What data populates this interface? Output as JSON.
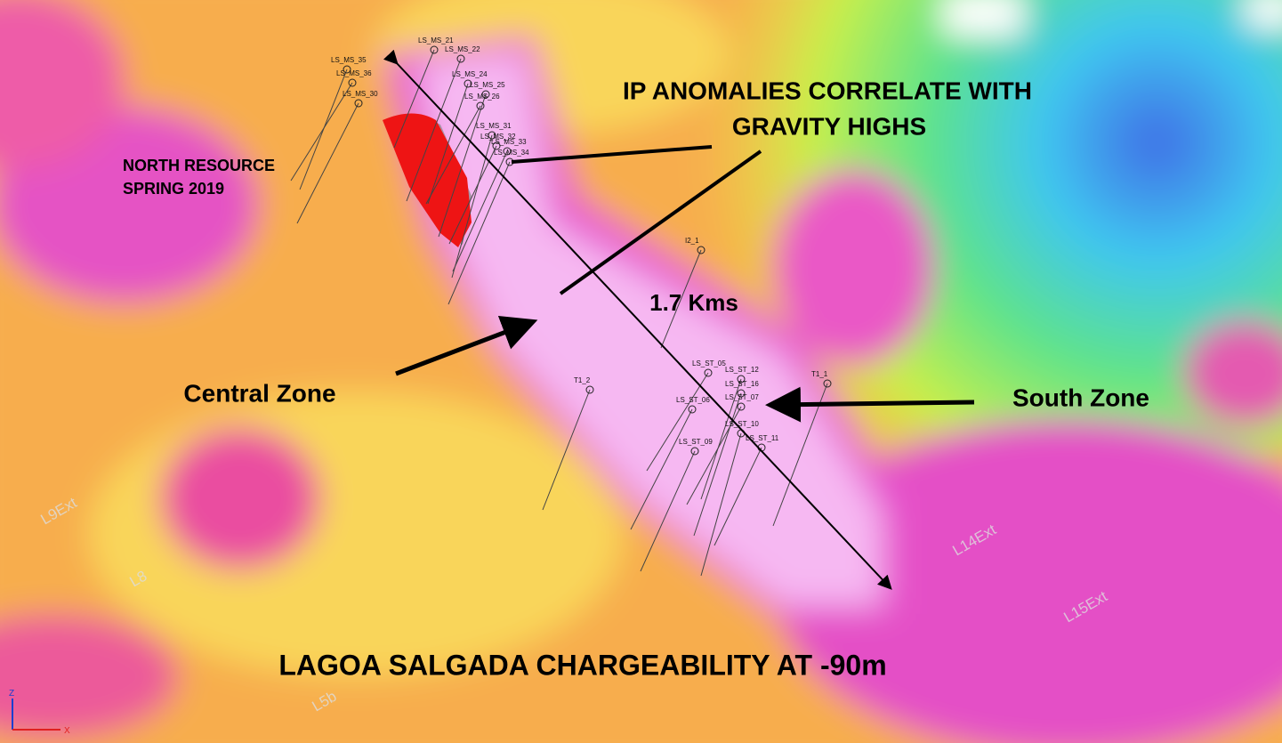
{
  "title": "LAGOA SALGADA CHARGEABILITY AT -90m",
  "annotations": {
    "ip_line_1": "IP ANOMALIES CORRELATE WITH",
    "ip_line_2": "GRAVITY HIGHS",
    "north_line_1": "NORTH RESOURCE",
    "north_line_2": "SPRING 2019",
    "distance": "1.7 Kms",
    "central_zone": "Central Zone",
    "south_zone": "South Zone"
  },
  "drill_holes": [
    "LS_MS_21",
    "LS_MS_35",
    "LS_MS_22",
    "LS_MS_36",
    "LS_MS_24",
    "LS_MS_25",
    "LS_MS_26",
    "LS_MS_30",
    "LS_MS_31",
    "LS_MS_32",
    "LS_MS_33",
    "LS_MS_34",
    "I2_1",
    "T1_2",
    "T1_1",
    "LS_ST_05",
    "LS_ST_12",
    "LS_ST_16",
    "LS_ST_07",
    "LS_ST_06",
    "LS_ST_10",
    "LS_ST_11",
    "LS_ST_09"
  ],
  "survey_lines": [
    "L9Ext",
    "L14Ext",
    "L15Ext",
    "L8",
    "L5b"
  ],
  "axis_triad": {
    "z": "Z",
    "x": "X"
  }
}
